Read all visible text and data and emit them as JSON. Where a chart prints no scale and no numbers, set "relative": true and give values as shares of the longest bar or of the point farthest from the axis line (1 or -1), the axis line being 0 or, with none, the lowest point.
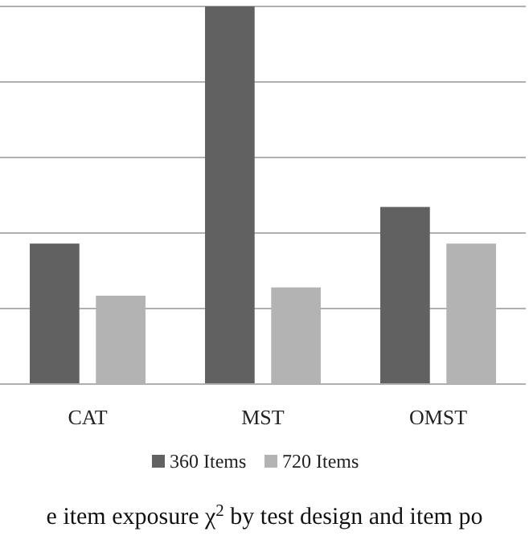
{
  "chart_data": {
    "type": "bar",
    "title": "e item exposure χ$^{2}$ by test design and item po",
    "categories": [
      "CAT",
      "MST",
      "OMST"
    ],
    "relative": true,
    "grid": true,
    "legend": "bottom",
    "series": [
      {
        "name": "360 Items",
        "color": "#616161",
        "values": [
          0.372,
          1,
          0.469
        ]
      },
      {
        "name": "720 Items",
        "color": "#b3b3b3",
        "values": [
          0.234,
          0.256,
          0.372
        ]
      }
    ]
  }
}
